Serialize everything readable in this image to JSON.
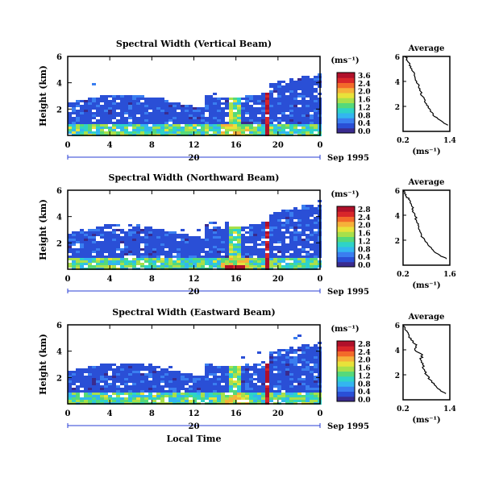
{
  "colorscale": [
    "#3a2b8f",
    "#2a4fd6",
    "#3a7ef0",
    "#33b6f0",
    "#2ed3c8",
    "#55d97a",
    "#a8e04a",
    "#e8e23a",
    "#f6b13a",
    "#f36a2a",
    "#d9262a",
    "#b0102a"
  ],
  "chart_data": [
    {
      "type": "heatmap",
      "title": "Spectral Width (Vertical Beam)",
      "ylabel": "Height (km)",
      "xlabel": "",
      "x_ticks": [
        "0",
        "4",
        "8",
        "12",
        "16",
        "20",
        "0"
      ],
      "y_ticks": [
        "6",
        "4",
        "2"
      ],
      "xlim": [
        0,
        24
      ],
      "ylim": [
        0,
        6
      ],
      "date_label": "20",
      "month_label": "Sep 1995",
      "colorbar": {
        "unit": "(ms⁻¹)",
        "ticks": [
          "3.6",
          "2.4",
          "2.0",
          "1.6",
          "1.2",
          "0.8",
          "0.4",
          "0.0"
        ]
      },
      "profile": {
        "title": "Average",
        "xlabel": "(ms⁻¹)",
        "x_ticks": [
          "0.2",
          "1.4"
        ],
        "y_ticks": [
          "6",
          "4",
          "2"
        ],
        "xlim": [
          0.2,
          1.4
        ],
        "ylim": [
          0,
          6
        ],
        "x": [
          1.35,
          1.2,
          1.0,
          0.9,
          0.85,
          0.75,
          0.7,
          0.65,
          0.6,
          0.55,
          0.5,
          0.45,
          0.4,
          0.35,
          0.3,
          0.25
        ],
        "y": [
          0.5,
          0.8,
          1.2,
          1.6,
          2.0,
          2.4,
          2.8,
          3.2,
          3.6,
          4.0,
          4.4,
          4.8,
          5.2,
          5.5,
          5.8,
          6.0
        ]
      }
    },
    {
      "type": "heatmap",
      "title": "Spectral Width (Northward Beam)",
      "ylabel": "Height (km)",
      "xlabel": "",
      "x_ticks": [
        "0",
        "4",
        "8",
        "12",
        "16",
        "20",
        "0"
      ],
      "y_ticks": [
        "6",
        "4",
        "2"
      ],
      "xlim": [
        0,
        24
      ],
      "ylim": [
        0,
        6
      ],
      "date_label": "20",
      "month_label": "Sep 1995",
      "colorbar": {
        "unit": "(ms⁻¹)",
        "ticks": [
          "2.8",
          "2.4",
          "2.0",
          "1.6",
          "1.2",
          "0.8",
          "0.4",
          "0.0"
        ]
      },
      "profile": {
        "title": "Average",
        "xlabel": "(ms⁻¹)",
        "x_ticks": [
          "0.2",
          "1.6"
        ],
        "y_ticks": [
          "6",
          "4",
          "2"
        ],
        "xlim": [
          0.2,
          1.6
        ],
        "ylim": [
          0,
          6
        ],
        "x": [
          1.5,
          1.3,
          1.1,
          0.95,
          0.85,
          0.75,
          0.7,
          0.65,
          0.6,
          0.55,
          0.5,
          0.45,
          0.4,
          0.3,
          0.25,
          0.2
        ],
        "y": [
          0.5,
          0.8,
          1.2,
          1.6,
          2.0,
          2.4,
          2.8,
          3.2,
          3.6,
          4.0,
          4.4,
          4.8,
          5.2,
          5.5,
          5.8,
          6.0
        ]
      }
    },
    {
      "type": "heatmap",
      "title": "Spectral Width (Eastward Beam)",
      "ylabel": "Height (km)",
      "xlabel": "Local Time",
      "x_ticks": [
        "0",
        "4",
        "8",
        "12",
        "16",
        "20",
        "0"
      ],
      "y_ticks": [
        "6",
        "4",
        "2"
      ],
      "xlim": [
        0,
        24
      ],
      "ylim": [
        0,
        6
      ],
      "date_label": "20",
      "month_label": "Sep 1995",
      "colorbar": {
        "unit": "(ms⁻¹)",
        "ticks": [
          "2.8",
          "2.4",
          "2.0",
          "1.6",
          "1.2",
          "0.8",
          "0.4",
          "0.0"
        ]
      },
      "profile": {
        "title": "Average",
        "xlabel": "(ms⁻¹)",
        "x_ticks": [
          "0.2",
          "1.4"
        ],
        "y_ticks": [
          "6",
          "4",
          "2"
        ],
        "xlim": [
          0.2,
          1.4
        ],
        "ylim": [
          0,
          6
        ],
        "x": [
          1.3,
          1.15,
          1.0,
          0.9,
          0.8,
          0.75,
          0.7,
          0.65,
          0.7,
          0.5,
          0.55,
          0.4,
          0.35,
          0.3,
          0.25,
          0.22
        ],
        "y": [
          0.5,
          0.8,
          1.2,
          1.6,
          2.0,
          2.4,
          2.8,
          3.2,
          3.6,
          4.0,
          4.4,
          4.8,
          5.2,
          5.5,
          5.8,
          6.0
        ]
      }
    }
  ]
}
